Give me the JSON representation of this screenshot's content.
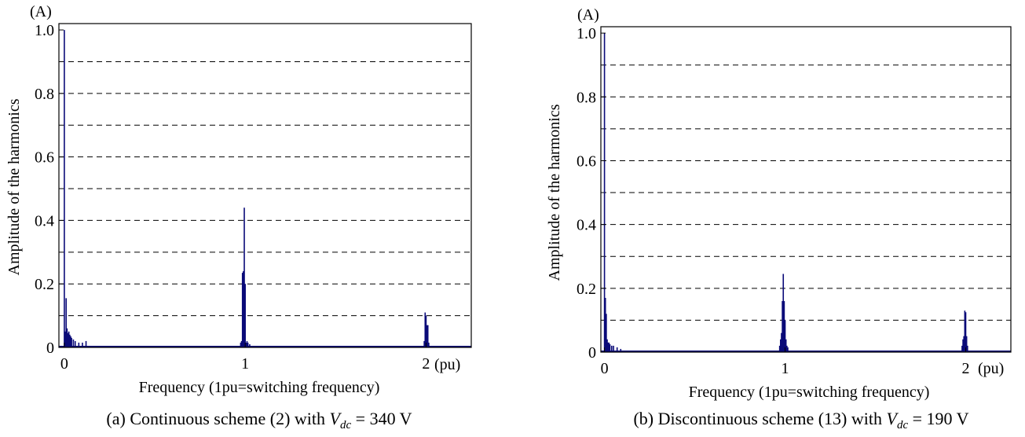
{
  "panels": [
    {
      "unit": "(A)",
      "x_unit": "(pu)",
      "caption_prefix": "(a) Continuous scheme (2) with ",
      "caption_var": "V",
      "caption_sub": "dc",
      "caption_suffix": " = 340 V"
    },
    {
      "unit": "(A)",
      "x_unit": "(pu)",
      "caption_prefix": "(b) Discontinuous scheme (13) with ",
      "caption_var": "V",
      "caption_sub": "dc",
      "caption_suffix": " = 190 V"
    }
  ],
  "chart_data": [
    {
      "type": "bar",
      "xlabel": "Frequency (1pu=switching frequency)",
      "ylabel": "Amplitude of the harmonics",
      "xlim": [
        -0.03,
        2.25
      ],
      "ylim": [
        0,
        1.02
      ],
      "xticks": [
        0,
        1,
        2
      ],
      "xtick_labels": [
        "0",
        "1",
        "2"
      ],
      "yticks": [
        0,
        0.2,
        0.4,
        0.6,
        0.8,
        1.0
      ],
      "ytick_labels": [
        "0",
        "0.2",
        "0.4",
        "0.6",
        "0.8",
        "1.0"
      ],
      "gridlines_y": [
        0.1,
        0.2,
        0.3,
        0.4,
        0.5,
        0.6,
        0.7,
        0.8,
        0.9
      ],
      "grid": "horizontal-dashed",
      "bar_color": "#0a0a78",
      "x": [
        0,
        0.005,
        0.01,
        0.015,
        0.02,
        0.025,
        0.03,
        0.035,
        0.04,
        0.05,
        0.06,
        0.08,
        0.1,
        0.12,
        0.975,
        0.98,
        0.985,
        0.99,
        0.995,
        1.0,
        1.005,
        1.01,
        1.015,
        1.025,
        1.99,
        1.995,
        2.0,
        2.005,
        2.01,
        2.015
      ],
      "values": [
        1.0,
        0.05,
        0.155,
        0.06,
        0.045,
        0.05,
        0.04,
        0.035,
        0.03,
        0.025,
        0.02,
        0.015,
        0.015,
        0.02,
        0.015,
        0.02,
        0.235,
        0.24,
        0.44,
        0.2,
        0.015,
        0.02,
        0.015,
        0.01,
        0.02,
        0.11,
        0.1,
        0.07,
        0.07,
        0.015
      ],
      "noise_floor": 0.005
    },
    {
      "type": "bar",
      "xlabel": "Frequency (1pu=switching frequency)",
      "ylabel": "Amplitude of the harmonics",
      "xlim": [
        -0.02,
        2.25
      ],
      "ylim": [
        0,
        1.02
      ],
      "xticks": [
        0,
        1,
        2
      ],
      "xtick_labels": [
        "0",
        "1",
        "2"
      ],
      "yticks": [
        0,
        0.2,
        0.4,
        0.6,
        0.8,
        1.0
      ],
      "ytick_labels": [
        "0",
        "0.2",
        "0.4",
        "0.6",
        "0.8",
        "1.0"
      ],
      "gridlines_y": [
        0.1,
        0.2,
        0.3,
        0.4,
        0.5,
        0.6,
        0.7,
        0.8,
        0.9
      ],
      "grid": "horizontal-dashed",
      "bar_color": "#0a0a78",
      "x": [
        0,
        0.005,
        0.01,
        0.015,
        0.02,
        0.025,
        0.03,
        0.04,
        0.05,
        0.07,
        0.09,
        0.97,
        0.975,
        0.98,
        0.985,
        0.99,
        0.995,
        1.0,
        1.005,
        1.01,
        1.015,
        1.98,
        1.985,
        1.99,
        1.995,
        2.0,
        2.005,
        2.01
      ],
      "values": [
        1.0,
        0.17,
        0.12,
        0.04,
        0.03,
        0.03,
        0.025,
        0.02,
        0.02,
        0.015,
        0.01,
        0.02,
        0.04,
        0.06,
        0.16,
        0.245,
        0.16,
        0.1,
        0.04,
        0.02,
        0.015,
        0.02,
        0.04,
        0.05,
        0.13,
        0.125,
        0.05,
        0.02
      ],
      "noise_floor": 0.005
    }
  ]
}
